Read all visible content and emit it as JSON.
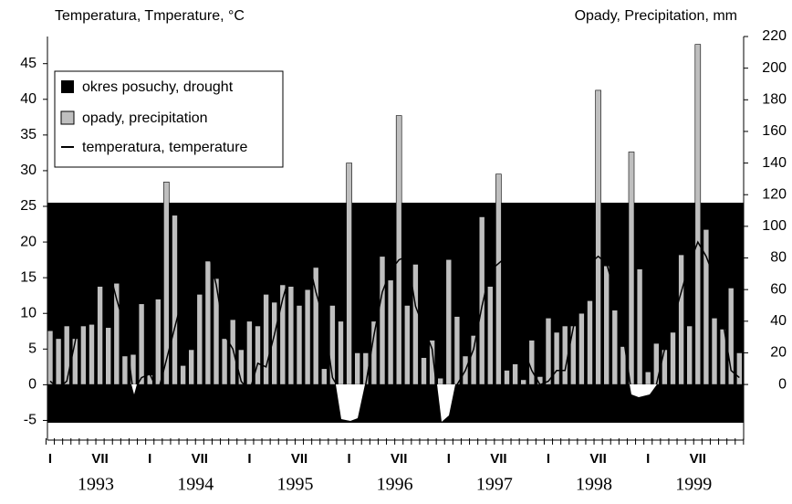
{
  "chart_data": {
    "type": "combo",
    "ylabel": "Temperatura, Tmperature, °C",
    "y2label": "Opady, Precipitation, mm",
    "drought_legend": "okres posuchy, drought",
    "month_labels": [
      "I",
      "VII",
      "I",
      "VII",
      "I",
      "VII",
      "I",
      "VII",
      "I",
      "VII",
      "I",
      "VII",
      "I",
      "VII"
    ],
    "years": [
      "1993",
      "1994",
      "1995",
      "1996",
      "1997",
      "1998",
      "1999"
    ],
    "ylim": [
      -7.5,
      48.8
    ],
    "yticks": [
      -5,
      0,
      5,
      10,
      15,
      20,
      25,
      30,
      35,
      40,
      45
    ],
    "y2lim": [
      -34,
      220
    ],
    "y2ticks": [
      0,
      20,
      40,
      60,
      80,
      100,
      120,
      140,
      160,
      180,
      200,
      220
    ],
    "series": [
      {
        "name": "opady, precipitation",
        "type": "bar",
        "axis": "y2",
        "color": "#bfbfbf",
        "values": [
          34,
          29,
          37,
          29,
          37,
          38,
          62,
          36,
          64,
          18,
          19,
          51,
          6,
          54,
          128,
          107,
          12,
          22,
          57,
          78,
          67,
          29,
          41,
          22,
          40,
          37,
          57,
          52,
          63,
          62,
          50,
          60,
          74,
          10,
          50,
          40,
          140,
          20,
          20,
          40,
          81,
          66,
          170,
          50,
          76,
          17,
          28,
          4,
          79,
          43,
          18,
          31,
          106,
          62,
          133,
          9,
          13,
          3,
          28,
          5,
          42,
          33,
          37,
          37,
          45,
          53,
          186,
          75,
          47,
          24,
          147,
          73,
          8,
          26,
          22,
          33,
          82,
          37,
          215,
          98,
          42,
          35,
          61,
          20
        ]
      },
      {
        "name": "temperatura, temperature",
        "type": "line",
        "color": "#000000",
        "values": [
          0.5,
          -0.5,
          0.5,
          6,
          12,
          16,
          17,
          16.5,
          12,
          8,
          -1,
          1,
          1.5,
          -1,
          3.5,
          8,
          12.5,
          16,
          20,
          19,
          14,
          7,
          5,
          0.5,
          -1,
          3,
          2.5,
          7,
          12,
          16,
          19,
          18,
          13,
          9,
          1,
          -1,
          -4.5,
          -4.5,
          0,
          7,
          13,
          16,
          17.5,
          18,
          11,
          8,
          5,
          -5,
          -5,
          0,
          2,
          5,
          11,
          16,
          17,
          18,
          13,
          5,
          2,
          0,
          0.5,
          2,
          2,
          8,
          13,
          17,
          18,
          17,
          13,
          7,
          -1,
          -2,
          -1.5,
          0,
          5,
          9,
          13,
          17,
          20,
          18,
          15,
          9,
          2,
          1
        ]
      }
    ]
  }
}
